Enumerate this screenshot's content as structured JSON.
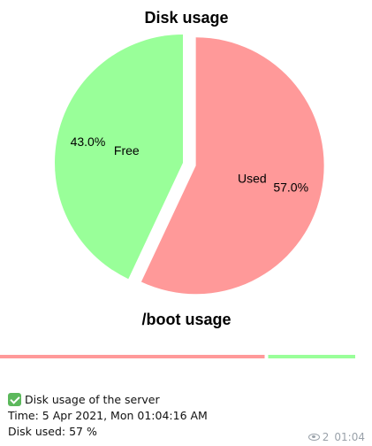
{
  "chart_data": [
    {
      "type": "pie",
      "title": "Disk usage",
      "slices": [
        {
          "label": "Used",
          "value": 57.0,
          "pct_label": "57.0%",
          "color": "#ff9999",
          "exploded": true
        },
        {
          "label": "Free",
          "value": 43.0,
          "pct_label": "43.0%",
          "color": "#99ff99",
          "exploded": false
        }
      ],
      "start_angle_deg": 90,
      "direction": "clockwise"
    },
    {
      "type": "bar",
      "orientation": "horizontal",
      "stacked": true,
      "title": "/boot usage",
      "series": [
        {
          "name": "",
          "values": [
            0.75
          ],
          "color": "#ff9999"
        },
        {
          "name": "",
          "values": [
            0.25
          ],
          "color": "#99ff99"
        }
      ]
    }
  ],
  "message": {
    "status_icon": "check-mark-icon",
    "heading": "Disk usage of the server",
    "time_line": "Time:  5 Apr 2021, Mon 01:04:16 AM",
    "disk_line": "Disk used: 57 %",
    "views": "2",
    "sent_time": "01:04",
    "views_icon": "eye-icon"
  }
}
